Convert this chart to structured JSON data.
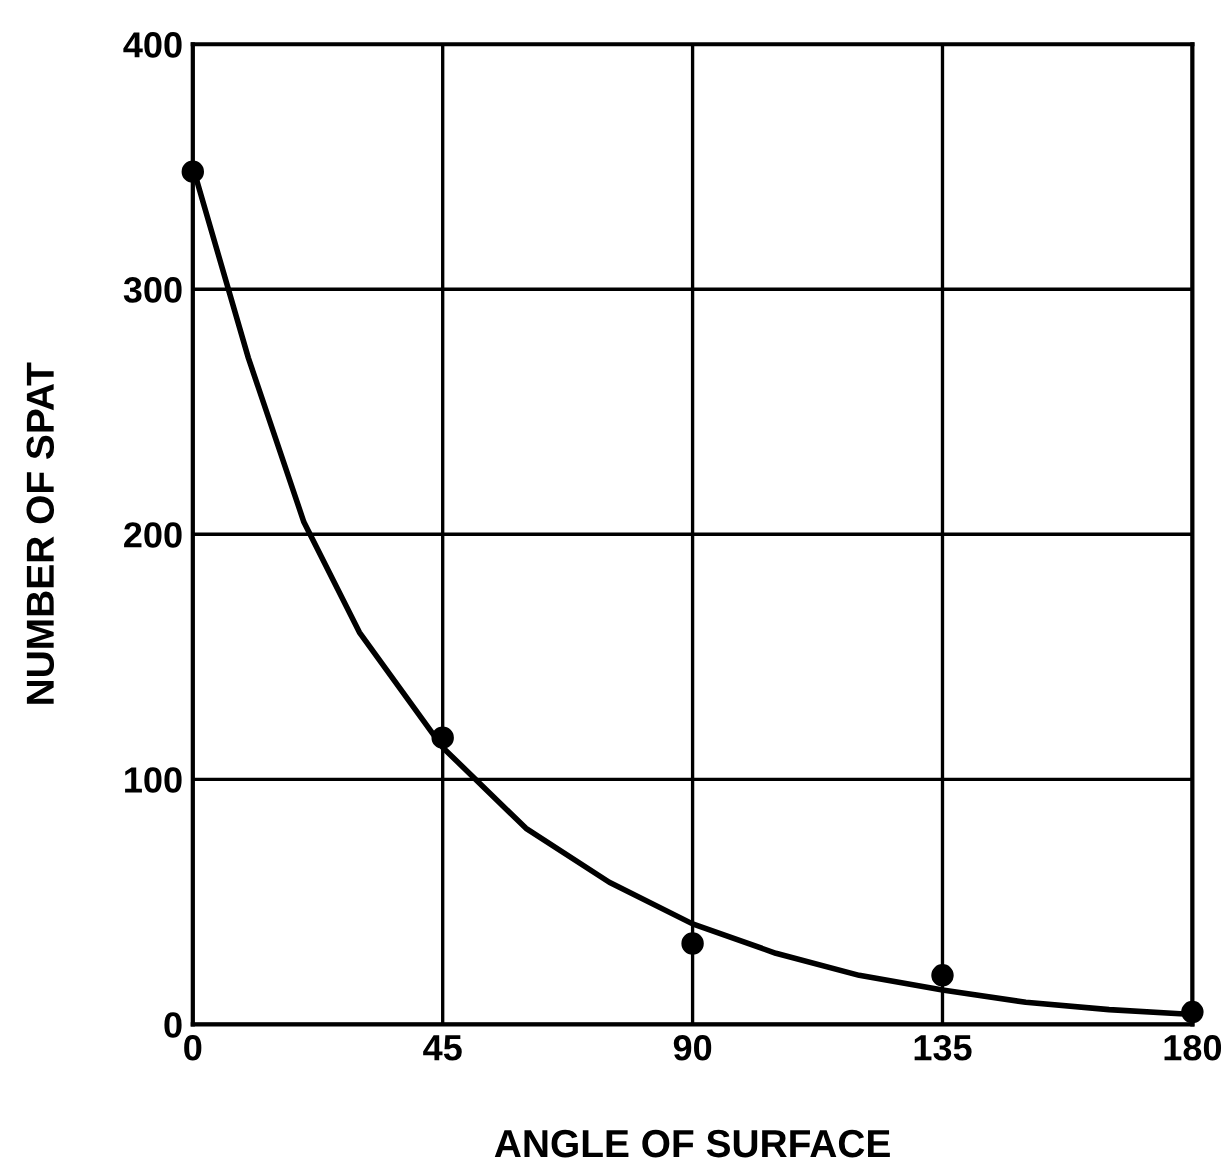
{
  "chart_data": {
    "type": "scatter",
    "xlabel": "ANGLE OF SURFACE",
    "ylabel": "NUMBER OF SPAT",
    "xlim": [
      0,
      180
    ],
    "ylim": [
      0,
      400
    ],
    "xticks": [
      0,
      45,
      90,
      135,
      180
    ],
    "yticks": [
      0,
      100,
      200,
      300,
      400
    ],
    "grid": true,
    "series": [
      {
        "color": "#000000",
        "marker": "circle",
        "x": [
          0,
          45,
          90,
          135,
          180
        ],
        "values": [
          348,
          117,
          33,
          20,
          5
        ]
      },
      {
        "type": "line",
        "color": "#000000",
        "line_style": "solid",
        "marker": "none",
        "x": [
          0,
          10,
          20,
          30,
          45,
          60,
          75,
          90,
          105,
          120,
          135,
          150,
          165,
          180
        ],
        "values": [
          350,
          272,
          205,
          160,
          113,
          80,
          58,
          41,
          29,
          20,
          14,
          9,
          6,
          4
        ]
      }
    ]
  }
}
